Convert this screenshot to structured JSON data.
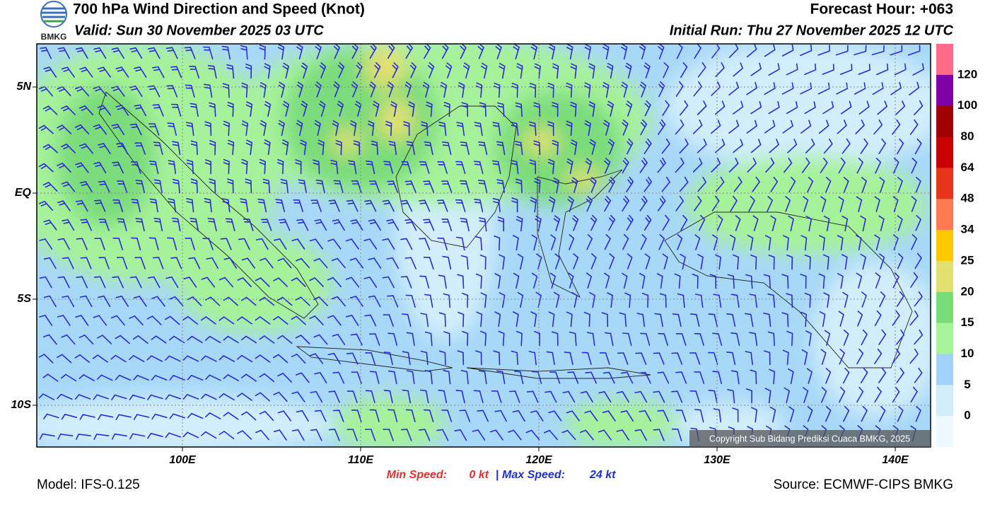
{
  "header": {
    "title": "700 hPa Wind Direction and Speed (Knot)",
    "valid": "Valid: Sun 30 November 2025 03 UTC",
    "forecast_hour": "Forecast Hour: +063",
    "initial_run": "Initial Run: Thu 27 November 2025 12 UTC",
    "logo_text": "BMKG"
  },
  "map": {
    "lat_labels": [
      "5N",
      "EQ",
      "5S",
      "10S"
    ],
    "lon_labels": [
      "100E",
      "110E",
      "120E",
      "130E",
      "140E"
    ],
    "copyright": "Copyright Sub Bidang Prediksi Cuaca BMKG, 2025"
  },
  "colorbar": {
    "labels": [
      "120",
      "100",
      "80",
      "64",
      "48",
      "34",
      "25",
      "20",
      "15",
      "10",
      "5",
      "0"
    ],
    "colors": [
      "#ff6a86",
      "#7c00a4",
      "#a00000",
      "#c80000",
      "#e83418",
      "#ff7a50",
      "#ffc800",
      "#e4e070",
      "#78dc78",
      "#a6f49a",
      "#a0d2fa",
      "#d2edfc",
      "#eef8ff"
    ]
  },
  "footer": {
    "model": "Model: IFS-0.125",
    "min_speed_label": "Min Speed:",
    "min_speed_value": "0 kt",
    "separator": "|",
    "max_speed_label": "Max Speed:",
    "max_speed_value": "24 kt",
    "source": "Source: ECMWF-CIPS BMKG"
  }
}
